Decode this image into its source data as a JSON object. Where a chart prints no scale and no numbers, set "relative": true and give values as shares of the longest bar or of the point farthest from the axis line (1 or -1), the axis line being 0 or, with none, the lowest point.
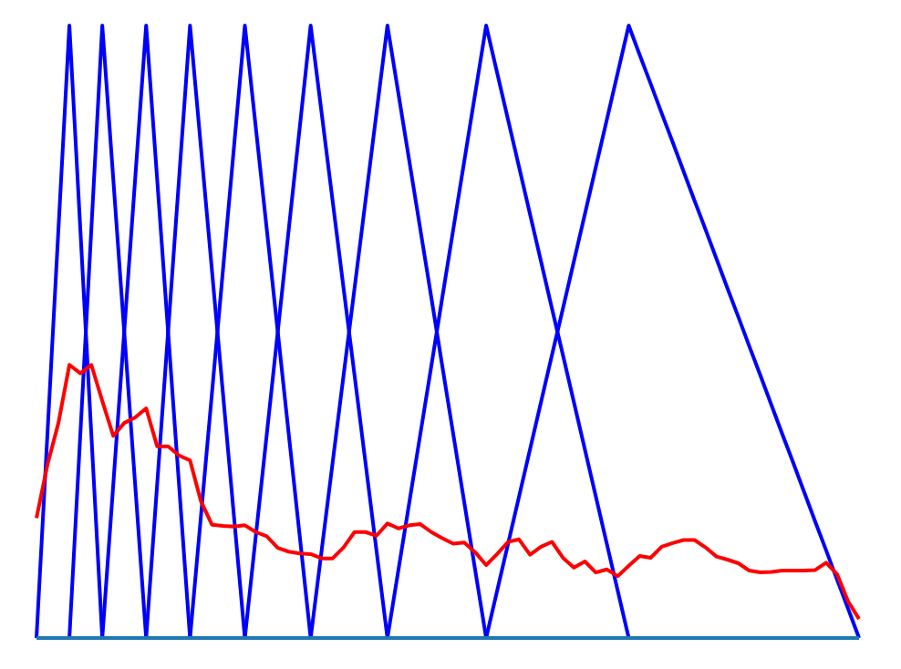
{
  "chart_data": {
    "type": "line",
    "relative": true,
    "categories": [
      null,
      null,
      null,
      null,
      null,
      null,
      null,
      null,
      null,
      null,
      null,
      null,
      null,
      null,
      null,
      null,
      null,
      null,
      null,
      null,
      null,
      null,
      null,
      null,
      null,
      null,
      null,
      null,
      null,
      null,
      null,
      null,
      null,
      null,
      null,
      null,
      null,
      null,
      null,
      null,
      null,
      null,
      null,
      null,
      null,
      null,
      null,
      null,
      null,
      null,
      null,
      null,
      null,
      null,
      null,
      null,
      null,
      null,
      null,
      null,
      null,
      null,
      null,
      null,
      null,
      null,
      null,
      null,
      null,
      null,
      null,
      null,
      null,
      null,
      null,
      null
    ],
    "series": [
      {
        "color": "#0000ff",
        "values": [
          0,
          0.333,
          0.667,
          1,
          0.667,
          0.333,
          0,
          null,
          null,
          null,
          null,
          null,
          null,
          null,
          null,
          null,
          null,
          null,
          null,
          null,
          null,
          null,
          null,
          null,
          null,
          null,
          null,
          null,
          null,
          null,
          null,
          null,
          null,
          null,
          null,
          null,
          null,
          null,
          null,
          null,
          null,
          null,
          null,
          null,
          null,
          null,
          null,
          null,
          null,
          null,
          null,
          null,
          null,
          null,
          null,
          null,
          null,
          null,
          null,
          null,
          null,
          null,
          null,
          null,
          null,
          null,
          null,
          null,
          null,
          null,
          null,
          null,
          null,
          null,
          null,
          null
        ]
      },
      {
        "color": "#0000ff",
        "values": [
          null,
          null,
          null,
          0,
          0.333,
          0.667,
          1,
          0.75,
          0.5,
          0.25,
          0,
          null,
          null,
          null,
          null,
          null,
          null,
          null,
          null,
          null,
          null,
          null,
          null,
          null,
          null,
          null,
          null,
          null,
          null,
          null,
          null,
          null,
          null,
          null,
          null,
          null,
          null,
          null,
          null,
          null,
          null,
          null,
          null,
          null,
          null,
          null,
          null,
          null,
          null,
          null,
          null,
          null,
          null,
          null,
          null,
          null,
          null,
          null,
          null,
          null,
          null,
          null,
          null,
          null,
          null,
          null,
          null,
          null,
          null,
          null,
          null,
          null,
          null,
          null,
          null,
          null
        ]
      },
      {
        "color": "#0000ff",
        "values": [
          null,
          null,
          null,
          null,
          null,
          null,
          0,
          0.25,
          0.5,
          0.75,
          1,
          0.75,
          0.5,
          0.25,
          0,
          null,
          null,
          null,
          null,
          null,
          null,
          null,
          null,
          null,
          null,
          null,
          null,
          null,
          null,
          null,
          null,
          null,
          null,
          null,
          null,
          null,
          null,
          null,
          null,
          null,
          null,
          null,
          null,
          null,
          null,
          null,
          null,
          null,
          null,
          null,
          null,
          null,
          null,
          null,
          null,
          null,
          null,
          null,
          null,
          null,
          null,
          null,
          null,
          null,
          null,
          null,
          null,
          null,
          null,
          null,
          null,
          null,
          null,
          null,
          null,
          null
        ]
      },
      {
        "color": "#0000ff",
        "values": [
          null,
          null,
          null,
          null,
          null,
          null,
          null,
          null,
          null,
          null,
          0,
          0.25,
          0.5,
          0.75,
          1,
          0.8,
          0.6,
          0.4,
          0.2,
          0,
          null,
          null,
          null,
          null,
          null,
          null,
          null,
          null,
          null,
          null,
          null,
          null,
          null,
          null,
          null,
          null,
          null,
          null,
          null,
          null,
          null,
          null,
          null,
          null,
          null,
          null,
          null,
          null,
          null,
          null,
          null,
          null,
          null,
          null,
          null,
          null,
          null,
          null,
          null,
          null,
          null,
          null,
          null,
          null,
          null,
          null,
          null,
          null,
          null,
          null,
          null,
          null,
          null,
          null,
          null,
          null
        ]
      },
      {
        "color": "#0000ff",
        "values": [
          null,
          null,
          null,
          null,
          null,
          null,
          null,
          null,
          null,
          null,
          null,
          null,
          null,
          null,
          0,
          0.2,
          0.4,
          0.6,
          0.8,
          1,
          0.833,
          0.667,
          0.5,
          0.333,
          0.167,
          0,
          null,
          null,
          null,
          null,
          null,
          null,
          null,
          null,
          null,
          null,
          null,
          null,
          null,
          null,
          null,
          null,
          null,
          null,
          null,
          null,
          null,
          null,
          null,
          null,
          null,
          null,
          null,
          null,
          null,
          null,
          null,
          null,
          null,
          null,
          null,
          null,
          null,
          null,
          null,
          null,
          null,
          null,
          null,
          null,
          null,
          null,
          null,
          null,
          null,
          null
        ]
      },
      {
        "color": "#0000ff",
        "values": [
          null,
          null,
          null,
          null,
          null,
          null,
          null,
          null,
          null,
          null,
          null,
          null,
          null,
          null,
          null,
          null,
          null,
          null,
          null,
          0,
          0.167,
          0.333,
          0.5,
          0.667,
          0.833,
          1,
          0.857,
          0.714,
          0.571,
          0.429,
          0.286,
          0.143,
          0,
          null,
          null,
          null,
          null,
          null,
          null,
          null,
          null,
          null,
          null,
          null,
          null,
          null,
          null,
          null,
          null,
          null,
          null,
          null,
          null,
          null,
          null,
          null,
          null,
          null,
          null,
          null,
          null,
          null,
          null,
          null,
          null,
          null,
          null,
          null,
          null,
          null,
          null,
          null,
          null,
          null,
          null,
          null
        ]
      },
      {
        "color": "#0000ff",
        "values": [
          null,
          null,
          null,
          null,
          null,
          null,
          null,
          null,
          null,
          null,
          null,
          null,
          null,
          null,
          null,
          null,
          null,
          null,
          null,
          null,
          null,
          null,
          null,
          null,
          null,
          0,
          0.143,
          0.286,
          0.429,
          0.571,
          0.714,
          0.857,
          1,
          0.889,
          0.778,
          0.667,
          0.556,
          0.444,
          0.333,
          0.222,
          0.111,
          0,
          null,
          null,
          null,
          null,
          null,
          null,
          null,
          null,
          null,
          null,
          null,
          null,
          null,
          null,
          null,
          null,
          null,
          null,
          null,
          null,
          null,
          null,
          null,
          null,
          null,
          null,
          null,
          null,
          null,
          null,
          null,
          null,
          null,
          null
        ]
      },
      {
        "color": "#0000ff",
        "values": [
          null,
          null,
          null,
          null,
          null,
          null,
          null,
          null,
          null,
          null,
          null,
          null,
          null,
          null,
          null,
          null,
          null,
          null,
          null,
          null,
          null,
          null,
          null,
          null,
          null,
          null,
          null,
          null,
          null,
          null,
          null,
          null,
          0,
          0.111,
          0.222,
          0.333,
          0.444,
          0.556,
          0.667,
          0.778,
          0.889,
          1,
          0.923,
          0.846,
          0.769,
          0.692,
          0.615,
          0.538,
          0.462,
          0.385,
          0.308,
          0.231,
          0.154,
          0.077,
          0,
          null,
          null,
          null,
          null,
          null,
          null,
          null,
          null,
          null,
          null,
          null,
          null,
          null,
          null,
          null,
          null,
          null,
          null,
          null,
          null,
          null
        ]
      },
      {
        "color": "#0000ff",
        "values": [
          null,
          null,
          null,
          null,
          null,
          null,
          null,
          null,
          null,
          null,
          null,
          null,
          null,
          null,
          null,
          null,
          null,
          null,
          null,
          null,
          null,
          null,
          null,
          null,
          null,
          null,
          null,
          null,
          null,
          null,
          null,
          null,
          null,
          null,
          null,
          null,
          null,
          null,
          null,
          null,
          null,
          0,
          0.077,
          0.154,
          0.231,
          0.308,
          0.385,
          0.462,
          0.538,
          0.615,
          0.692,
          0.769,
          0.846,
          0.923,
          1,
          0.952,
          0.905,
          0.857,
          0.81,
          0.762,
          0.714,
          0.667,
          0.619,
          0.571,
          0.524,
          0.476,
          0.429,
          0.381,
          0.333,
          0.286,
          0.238,
          0.19,
          0.143,
          0.095,
          0.048,
          0
        ]
      },
      {
        "color": "#ff0000",
        "values": [
          0.196,
          0.283,
          0.351,
          0.446,
          0.432,
          0.446,
          0.387,
          0.33,
          0.351,
          0.36,
          0.375,
          0.313,
          0.313,
          0.298,
          0.29,
          0.223,
          0.185,
          0.183,
          0.182,
          0.184,
          0.173,
          0.166,
          0.147,
          0.141,
          0.138,
          0.137,
          0.13,
          0.13,
          0.148,
          0.173,
          0.173,
          0.167,
          0.187,
          0.179,
          0.184,
          0.186,
          0.173,
          0.163,
          0.154,
          0.156,
          0.14,
          0.119,
          0.137,
          0.157,
          0.161,
          0.136,
          0.149,
          0.157,
          0.131,
          0.115,
          0.125,
          0.107,
          0.112,
          0.101,
          0.118,
          0.134,
          0.131,
          0.149,
          0.155,
          0.16,
          0.16,
          0.148,
          0.133,
          0.128,
          0.122,
          0.11,
          0.107,
          0.108,
          0.11,
          0.11,
          0.11,
          0.111,
          0.123,
          0.104,
          0.06,
          0.031
        ]
      }
    ]
  }
}
